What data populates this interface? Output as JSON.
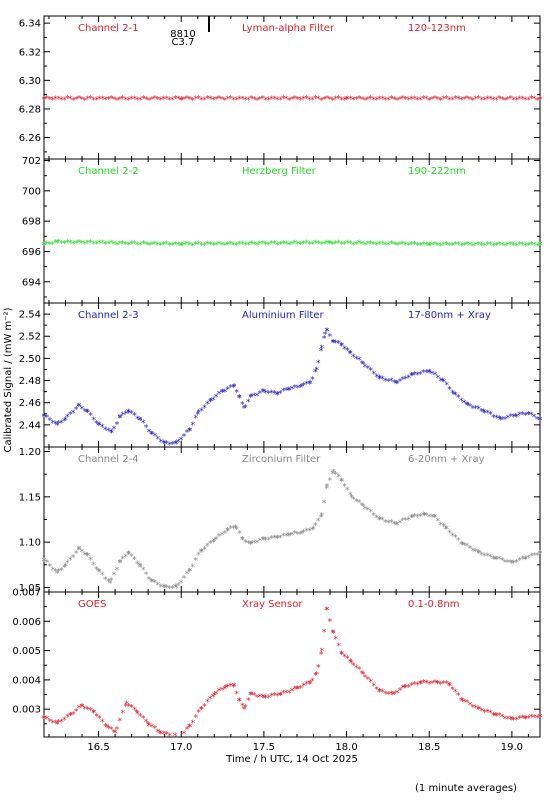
{
  "figure": {
    "ylabel": "Calibrated Signal / (mW m⁻²)",
    "xlabel": "Time / h UTC, 14 Oct 2025",
    "footnote": "(1 minute averages)",
    "top_marker_text": [
      "8810",
      "C3.7"
    ]
  },
  "chart_data": [
    {
      "type": "scatter",
      "panel": "Channel 2-1",
      "labels": {
        "channel": "Channel 2-1",
        "filter": "Lyman-alpha Filter",
        "band": "120-123nm"
      },
      "color": "#e0202a",
      "ylim": [
        6.245,
        6.345
      ],
      "yticks": [
        6.26,
        6.28,
        6.3,
        6.32,
        6.34
      ],
      "ytick_labels": [
        "6.26",
        "6.28",
        "6.30",
        "6.32",
        "6.34"
      ],
      "xlim": [
        16.17,
        19.17
      ],
      "x": [
        16.17,
        17.0,
        18.0,
        19.17
      ],
      "y": [
        6.287,
        6.287,
        6.287,
        6.287
      ]
    },
    {
      "type": "scatter",
      "panel": "Channel 2-2",
      "labels": {
        "channel": "Channel 2-2",
        "filter": "Herzberg Filter",
        "band": "190-222nm"
      },
      "color": "#22dd22",
      "ylim": [
        692.6,
        702.1
      ],
      "yticks": [
        694,
        696,
        698,
        700,
        702
      ],
      "ytick_labels": [
        "694",
        "696",
        "698",
        "700",
        "702"
      ],
      "xlim": [
        16.17,
        19.17
      ],
      "x": [
        16.17,
        16.25,
        17.0,
        17.9,
        18.5,
        19.17
      ],
      "y": [
        696.45,
        696.6,
        696.45,
        696.55,
        696.45,
        696.45
      ]
    },
    {
      "type": "scatter",
      "panel": "Channel 2-3",
      "labels": {
        "channel": "Channel 2-3",
        "filter": "Aluminium Filter",
        "band": "17-80nm + Xray"
      },
      "color": "#2424cc",
      "ylim": [
        2.42,
        2.55
      ],
      "yticks": [
        2.44,
        2.46,
        2.48,
        2.5,
        2.52,
        2.54
      ],
      "ytick_labels": [
        "2.44",
        "2.46",
        "2.48",
        "2.50",
        "2.52",
        "2.54"
      ],
      "xlim": [
        16.17,
        19.17
      ],
      "x": [
        16.17,
        16.25,
        16.3,
        16.38,
        16.43,
        16.5,
        16.58,
        16.63,
        16.68,
        16.75,
        16.82,
        16.9,
        16.97,
        17.05,
        17.1,
        17.18,
        17.25,
        17.32,
        17.35,
        17.38,
        17.42,
        17.5,
        17.58,
        17.65,
        17.73,
        17.78,
        17.82,
        17.85,
        17.87,
        17.88,
        17.92,
        17.97,
        18.02,
        18.1,
        18.2,
        18.3,
        18.4,
        18.5,
        18.58,
        18.65,
        18.73,
        18.83,
        18.93,
        19.02,
        19.1,
        19.17
      ],
      "y": [
        2.448,
        2.44,
        2.445,
        2.457,
        2.452,
        2.44,
        2.433,
        2.447,
        2.452,
        2.445,
        2.432,
        2.423,
        2.423,
        2.435,
        2.45,
        2.462,
        2.47,
        2.475,
        2.465,
        2.455,
        2.465,
        2.47,
        2.468,
        2.472,
        2.475,
        2.478,
        2.49,
        2.51,
        2.522,
        2.525,
        2.515,
        2.512,
        2.505,
        2.495,
        2.482,
        2.478,
        2.485,
        2.488,
        2.48,
        2.468,
        2.458,
        2.452,
        2.445,
        2.448,
        2.45,
        2.445
      ]
    },
    {
      "type": "scatter",
      "panel": "Channel 2-4",
      "labels": {
        "channel": "Channel 2-4",
        "filter": "Zirconium Filter",
        "band": "6-20nm + Xray"
      },
      "color": "#888888",
      "ylim": [
        1.045,
        1.205
      ],
      "yticks": [
        1.05,
        1.1,
        1.15,
        1.2
      ],
      "ytick_labels": [
        "1.05",
        "1.10",
        "1.15",
        "1.20"
      ],
      "xlim": [
        16.17,
        19.17
      ],
      "x": [
        16.17,
        16.25,
        16.3,
        16.38,
        16.43,
        16.5,
        16.57,
        16.63,
        16.68,
        16.75,
        16.82,
        16.9,
        16.97,
        17.05,
        17.12,
        17.2,
        17.28,
        17.33,
        17.37,
        17.42,
        17.5,
        17.58,
        17.65,
        17.73,
        17.8,
        17.85,
        17.88,
        17.92,
        17.97,
        18.03,
        18.1,
        18.2,
        18.3,
        18.4,
        18.47,
        18.53,
        18.6,
        18.7,
        18.8,
        18.9,
        19.0,
        19.08,
        19.17
      ],
      "y": [
        1.08,
        1.066,
        1.074,
        1.092,
        1.086,
        1.068,
        1.055,
        1.078,
        1.088,
        1.074,
        1.057,
        1.05,
        1.05,
        1.068,
        1.09,
        1.102,
        1.113,
        1.117,
        1.103,
        1.098,
        1.103,
        1.105,
        1.108,
        1.11,
        1.115,
        1.13,
        1.16,
        1.178,
        1.168,
        1.15,
        1.14,
        1.125,
        1.12,
        1.128,
        1.13,
        1.128,
        1.115,
        1.098,
        1.088,
        1.082,
        1.077,
        1.082,
        1.088
      ]
    },
    {
      "type": "scatter",
      "panel": "GOES",
      "labels": {
        "channel": "GOES",
        "filter": "Xray Sensor",
        "band": "0.1-0.8nm"
      },
      "color": "#e0202a",
      "ylim": [
        0.00205,
        0.007
      ],
      "yticks": [
        0.003,
        0.004,
        0.005,
        0.006,
        0.007
      ],
      "ytick_labels": [
        "0.003",
        "0.004",
        "0.005",
        "0.006",
        "0.007"
      ],
      "xlim": [
        16.17,
        19.17
      ],
      "x": [
        16.17,
        16.25,
        16.33,
        16.4,
        16.47,
        16.55,
        16.6,
        16.67,
        16.73,
        16.8,
        16.87,
        16.93,
        17.0,
        17.05,
        17.12,
        17.2,
        17.27,
        17.32,
        17.35,
        17.38,
        17.42,
        17.5,
        17.6,
        17.7,
        17.78,
        17.82,
        17.85,
        17.88,
        17.92,
        17.97,
        18.03,
        18.1,
        18.2,
        18.28,
        18.35,
        18.45,
        18.55,
        18.62,
        18.7,
        18.8,
        18.9,
        19.0,
        19.08,
        19.17
      ],
      "y": [
        0.0027,
        0.0025,
        0.0028,
        0.0031,
        0.0029,
        0.0024,
        0.0022,
        0.0032,
        0.0029,
        0.0025,
        0.0022,
        0.0021,
        0.00205,
        0.0024,
        0.003,
        0.0035,
        0.00375,
        0.0038,
        0.0033,
        0.003,
        0.0035,
        0.0034,
        0.0035,
        0.0037,
        0.0039,
        0.0042,
        0.005,
        0.0064,
        0.0056,
        0.0049,
        0.0046,
        0.0042,
        0.0036,
        0.0035,
        0.00375,
        0.0039,
        0.0039,
        0.00385,
        0.0033,
        0.003,
        0.0028,
        0.00265,
        0.0027,
        0.00275
      ]
    }
  ],
  "x_axis": {
    "ticks": [
      16.5,
      17.0,
      17.5,
      18.0,
      18.5,
      19.0
    ],
    "tick_labels": [
      "16.5",
      "17.0",
      "17.5",
      "18.0",
      "18.5",
      "19.0"
    ]
  }
}
